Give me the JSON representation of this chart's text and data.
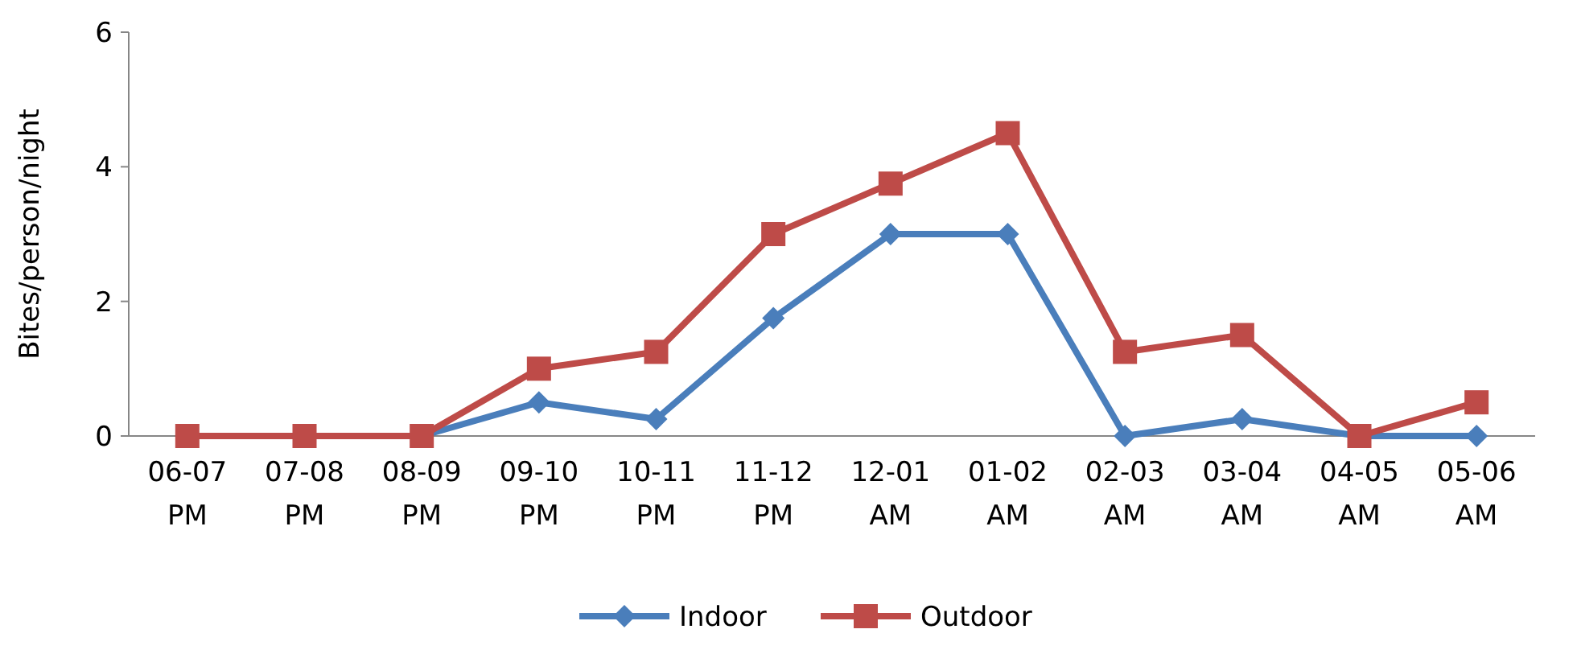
{
  "chart_data": {
    "type": "line",
    "ylabel": "Bites/person/night",
    "categories": [
      "06-07 PM",
      "07-08 PM",
      "08-09 PM",
      "09-10 PM",
      "10-11 PM",
      "11-12 PM",
      "12-01 AM",
      "01-02 AM",
      "02-03 AM",
      "03-04 AM",
      "04-05 AM",
      "05-06 AM"
    ],
    "series": [
      {
        "name": "Indoor",
        "color": "#4a7ebb",
        "marker": "diamond",
        "values": [
          0,
          0,
          0,
          0.5,
          0.25,
          1.75,
          3,
          3,
          0,
          0.25,
          0,
          0
        ]
      },
      {
        "name": "Outdoor",
        "color": "#be4b48",
        "marker": "square",
        "values": [
          0,
          0,
          0,
          1,
          1.25,
          3,
          3.75,
          4.5,
          1.25,
          1.5,
          0,
          0.5
        ]
      }
    ],
    "ylim": [
      0,
      6
    ],
    "yticks": [
      0,
      2,
      4,
      6
    ],
    "grid": false,
    "legend": "bottom"
  }
}
